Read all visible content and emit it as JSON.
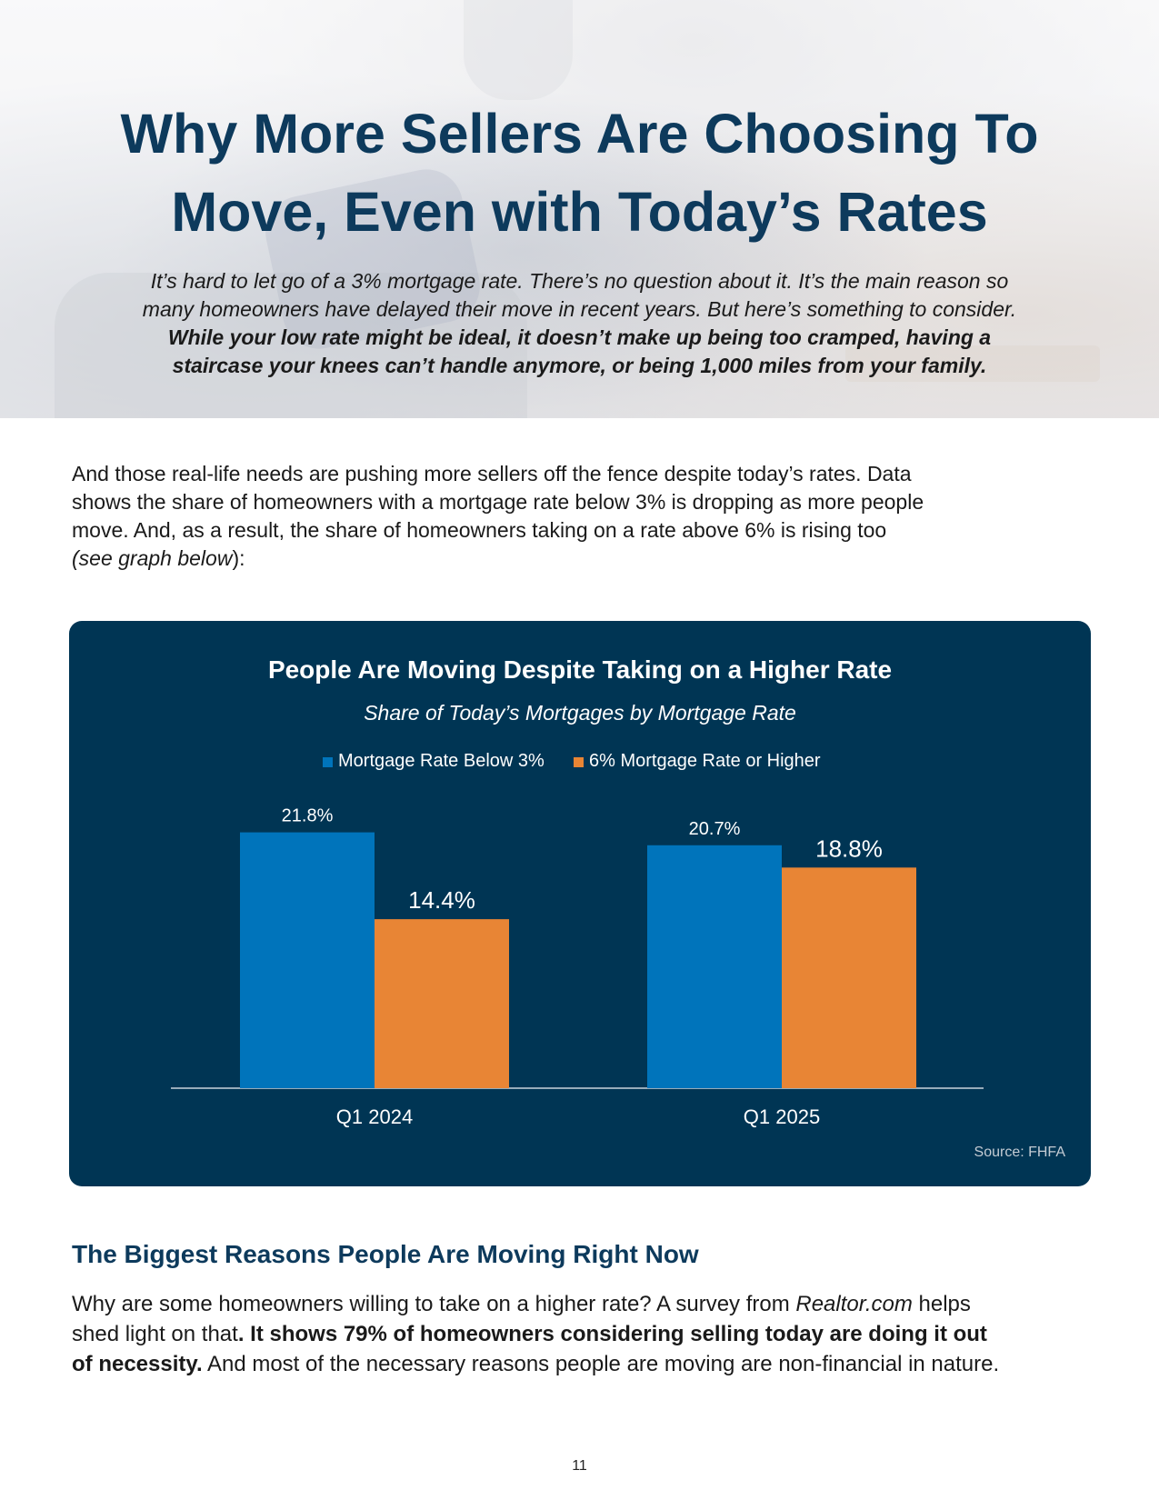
{
  "header": {
    "title_line1": "Why More Sellers Are Choosing To",
    "title_line2": "Move, Even with Today’s Rates",
    "intro_line1": "It’s hard to let go of a 3% mortgage rate. There’s no question about it. It’s the main reason so",
    "intro_line2": "many homeowners have delayed their move in recent years. But here’s something to consider.",
    "intro_bold_line1": "While your low rate might be ideal, it doesn’t make up being too cramped, having a",
    "intro_bold_line2": "staircase your knees can’t handle anymore, or being 1,000 miles from your family."
  },
  "body": {
    "para1_line1": "And those real-life needs are pushing more sellers off the fence despite today’s rates. Data",
    "para1_line2": "shows the share of homeowners with a mortgage rate below 3% is dropping as more people",
    "para1_line3": "move. And, as a result, the share of homeowners taking on a rate above 6% is rising too",
    "para1_italic": "(see graph below",
    "para1_end": "):",
    "subhead": "The Biggest Reasons People Are Moving Right Now",
    "para2_line1_start": "Why are some homeowners willing to take on a higher rate? A survey from ",
    "para2_line1_italic": "Realtor.com",
    "para2_line1_end": " helps",
    "para2_line2_start": "shed light on that",
    "para2_line2_bold": ". It shows 79% of homeowners considering selling today are doing it out",
    "para2_line3_bold": "of necessity.",
    "para2_line3_end": " And most of the necessary reasons people are moving are non-financial in nature."
  },
  "page_number": "11",
  "chart_data": {
    "type": "bar",
    "title": "People Are Moving Despite Taking on a Higher Rate",
    "subtitle": "Share of Today’s Mortgages by Mortgage Rate",
    "categories": [
      "Q1 2024",
      "Q1 2025"
    ],
    "series": [
      {
        "name": "Mortgage Rate Below 3%",
        "values": [
          21.8,
          20.7
        ],
        "labels": [
          "21.8%",
          "20.7%"
        ],
        "color": "#0074bb"
      },
      {
        "name": "6% Mortgage Rate or Higher",
        "values": [
          14.4,
          18.8
        ],
        "labels": [
          "14.4%",
          "18.8%"
        ],
        "color": "#e88535"
      }
    ],
    "ylim": [
      0,
      22
    ],
    "grid": false,
    "legend_position": "top-center",
    "source": "Source: FHFA",
    "colors": {
      "background": "#003554",
      "text": "#ffffff",
      "axis": "#c9d3db",
      "source": "#c4ccd4"
    }
  }
}
